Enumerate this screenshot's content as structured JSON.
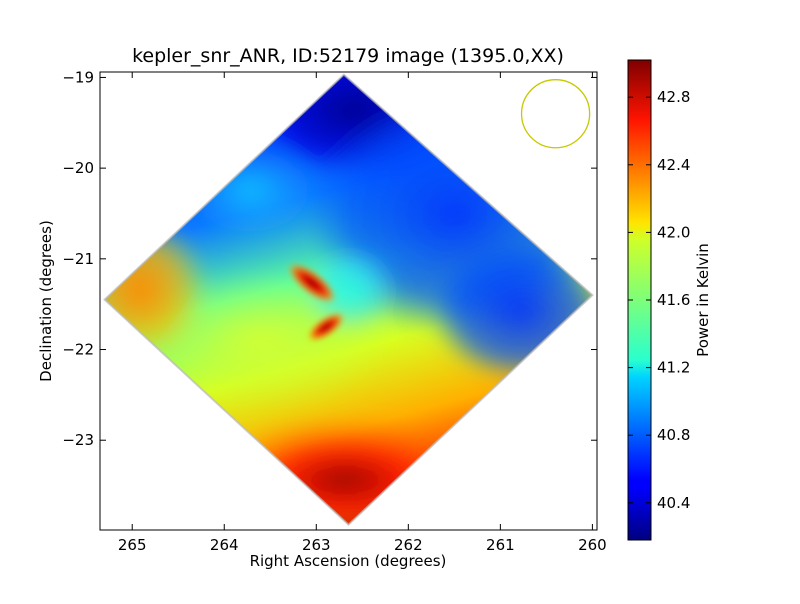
{
  "chart_data": {
    "type": "heatmap",
    "title": "kepler_snr_ANR, ID:52179 image (1395.0,XX)",
    "xlabel": "Right Ascension (degrees)",
    "ylabel": "Declination (degrees)",
    "xlim": [
      265.35,
      259.95
    ],
    "ylim": [
      -23.99,
      -18.94
    ],
    "xticks": [
      265,
      264,
      263,
      262,
      261,
      260
    ],
    "xtick_labels": [
      "265",
      "264",
      "263",
      "262",
      "261",
      "260"
    ],
    "yticks": [
      -19,
      -20,
      -21,
      -22,
      -23
    ],
    "ytick_labels": [
      "−19",
      "−20",
      "−21",
      "−22",
      "−23"
    ],
    "colorbar": {
      "label": "Power in Kelvin",
      "range": [
        40.18,
        43.02
      ],
      "ticks": [
        40.4,
        40.8,
        41.2,
        41.6,
        42.0,
        42.4,
        42.8
      ],
      "tick_labels": [
        "40.4",
        "40.8",
        "41.2",
        "41.6",
        "42.0",
        "42.4",
        "42.8"
      ],
      "colormap": "jet"
    },
    "image_footprint_corners": [
      {
        "ra": 262.7,
        "dec": -18.97
      },
      {
        "ra": 265.3,
        "dec": -21.45
      },
      {
        "ra": 262.65,
        "dec": -23.93
      },
      {
        "ra": 260.0,
        "dec": -21.4
      }
    ],
    "beam_circle": {
      "ra": 260.4,
      "dec": -19.4,
      "radius_deg": 0.37,
      "color": "#c8c800"
    },
    "features": [
      {
        "name": "hot lobe upper",
        "ra": 263.1,
        "dec": -21.2,
        "value": 42.8
      },
      {
        "name": "hot lobe lower",
        "ra": 262.9,
        "dec": -21.8,
        "value": 42.6
      },
      {
        "name": "bright south edge",
        "ra": 262.6,
        "dec": -23.8,
        "value": 42.9
      },
      {
        "name": "warm east edge",
        "ra": 265.1,
        "dec": -21.5,
        "value": 42.3
      },
      {
        "name": "cold north",
        "ra": 262.3,
        "dec": -19.3,
        "value": 40.2
      },
      {
        "name": "cool west",
        "ra": 260.6,
        "dec": -21.3,
        "value": 40.7
      }
    ]
  }
}
